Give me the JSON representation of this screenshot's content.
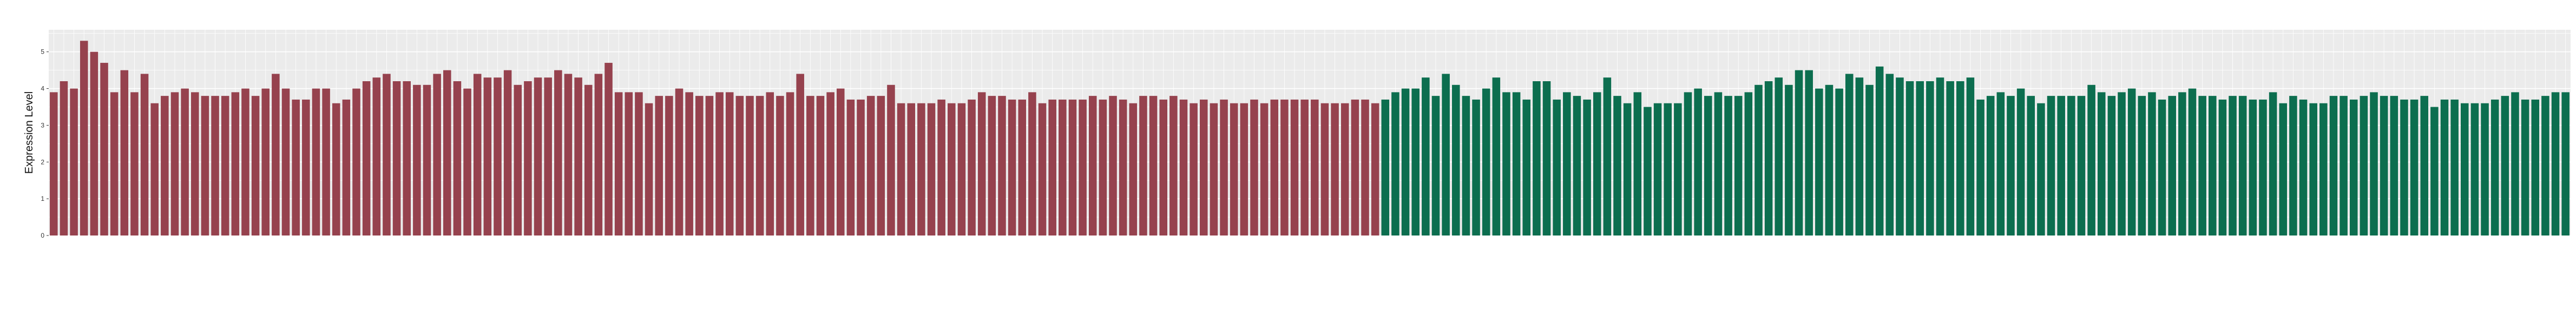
{
  "chart_data": {
    "type": "bar",
    "title": "",
    "xlabel": "",
    "ylabel": "Expression Level",
    "ylim": [
      0,
      5.6
    ],
    "yticks": [
      0,
      1,
      2,
      3,
      4,
      5
    ],
    "grid": true,
    "legend": "none",
    "colors": {
      "group_a": "#96424e",
      "group_b": "#0c6e4f",
      "panel": "#ebebeb",
      "grid": "#ffffff"
    },
    "series": [
      {
        "values": [
          3.9,
          4.2,
          4.0,
          5.3,
          5.0,
          4.7,
          3.9,
          4.5,
          3.9,
          4.4,
          3.6,
          3.8,
          3.9,
          4.0,
          3.9,
          3.8,
          3.8,
          3.8,
          3.9,
          4.0,
          3.8,
          4.0,
          4.4,
          4.0,
          3.7,
          3.7,
          4.0,
          4.0,
          3.6,
          3.7,
          4.0,
          4.2,
          4.3,
          4.4,
          4.2,
          4.2,
          4.1,
          4.1,
          4.4,
          4.5,
          4.2,
          4.0,
          4.4,
          4.3,
          4.3,
          4.5,
          4.1,
          4.2,
          4.3,
          4.3,
          4.5,
          4.4,
          4.3,
          4.1,
          4.4,
          4.7,
          3.9,
          3.9,
          3.9,
          3.6,
          3.8,
          3.8,
          4.0,
          3.9,
          3.8,
          3.8,
          3.9,
          3.9,
          3.8,
          3.8,
          3.8,
          3.9,
          3.8,
          3.9,
          4.4,
          3.8,
          3.8,
          3.9,
          4.0,
          3.7,
          3.7,
          3.8,
          3.8,
          4.1,
          3.6,
          3.6,
          3.6,
          3.6,
          3.7,
          3.6,
          3.6,
          3.7,
          3.9,
          3.8,
          3.8,
          3.7,
          3.7,
          3.9,
          3.6,
          3.7,
          3.7,
          3.7,
          3.7,
          3.8,
          3.7,
          3.8,
          3.7,
          3.6,
          3.8,
          3.8,
          3.7,
          3.8,
          3.7,
          3.6,
          3.7,
          3.6,
          3.7,
          3.6,
          3.6,
          3.7,
          3.6,
          3.7,
          3.7,
          3.7,
          3.7,
          3.7,
          3.6,
          3.6,
          3.6,
          3.7,
          3.7,
          3.6
        ]
      },
      {
        "values": [
          3.7,
          3.9,
          4.0,
          4.0,
          4.3,
          3.8,
          4.4,
          4.1,
          3.8,
          3.7,
          4.0,
          4.3,
          3.9,
          3.9,
          3.7,
          4.2,
          4.2,
          3.7,
          3.9,
          3.8,
          3.7,
          3.9,
          4.3,
          3.8,
          3.6,
          3.9,
          3.5,
          3.6,
          3.6,
          3.6,
          3.9,
          4.0,
          3.8,
          3.9,
          3.8,
          3.8,
          3.9,
          4.1,
          4.2,
          4.3,
          4.1,
          4.5,
          4.5,
          4.0,
          4.1,
          4.0,
          4.4,
          4.3,
          4.1,
          4.6,
          4.4,
          4.3,
          4.2,
          4.2,
          4.2,
          4.3,
          4.2,
          4.2,
          4.3,
          3.7,
          3.8,
          3.9,
          3.8,
          4.0,
          3.8,
          3.6,
          3.8,
          3.8,
          3.8,
          3.8,
          4.1,
          3.9,
          3.8,
          3.9,
          4.0,
          3.8,
          3.9,
          3.7,
          3.8,
          3.9,
          4.0,
          3.8,
          3.8,
          3.7,
          3.8,
          3.8,
          3.7,
          3.7,
          3.9,
          3.6,
          3.8,
          3.7,
          3.6,
          3.6,
          3.8,
          3.8,
          3.7,
          3.8,
          3.9,
          3.8,
          3.8,
          3.7,
          3.7,
          3.8,
          3.5,
          3.7,
          3.7,
          3.6,
          3.6,
          3.6,
          3.7,
          3.8,
          3.9,
          3.7,
          3.7,
          3.8,
          3.9,
          3.9
        ]
      }
    ]
  }
}
